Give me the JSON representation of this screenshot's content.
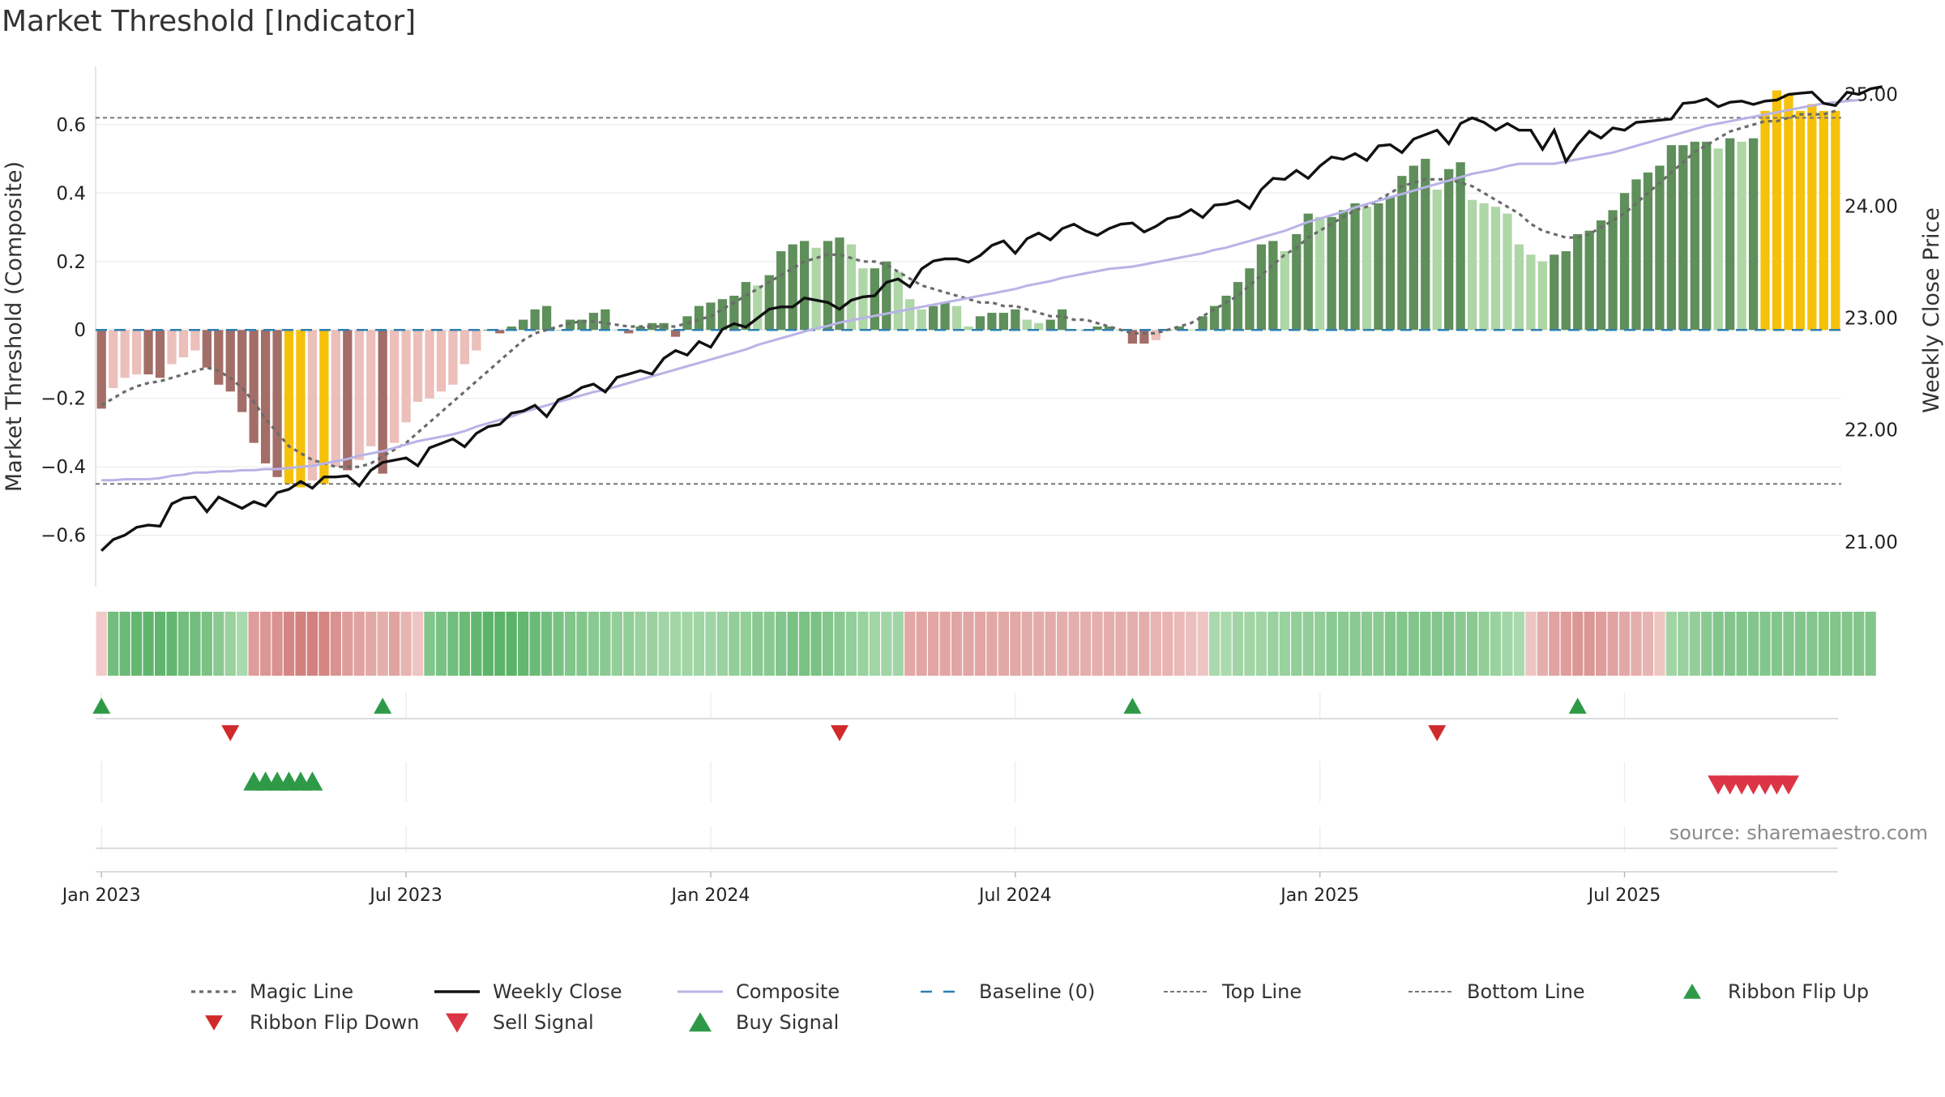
{
  "title": "Market Threshold [Indicator]",
  "source": "source: sharemaestro.com",
  "colors": {
    "magic_line": "#6b6b6b",
    "weekly_close": "#111111",
    "composite": "#b9b3e6",
    "baseline": "#2e7fb0",
    "ref_line": "#777777",
    "ribbon_flip_up": "#2e9a48",
    "ribbon_flip_down": "#d02a2a",
    "sell_signal": "#dc3545",
    "buy_signal": "#2e9a48",
    "extreme_bar": "#f5c10a"
  },
  "chart_data": {
    "type": "bar",
    "title": "Market Threshold [Indicator]",
    "ylabel": "Market Threshold (Composite)",
    "y2label": "Weekly Close Price",
    "ylim": [
      -0.75,
      0.77
    ],
    "y2lim": [
      20.6,
      25.25
    ],
    "yticks": [
      {
        "value": 0.6,
        "label": "0.6"
      },
      {
        "value": 0.4,
        "label": "0.4"
      },
      {
        "value": 0.2,
        "label": "0.2"
      },
      {
        "value": 0,
        "label": "0"
      },
      {
        "value": -0.2,
        "label": "−0.2"
      },
      {
        "value": -0.4,
        "label": "−0.4"
      },
      {
        "value": -0.6,
        "label": "−0.6"
      }
    ],
    "y2ticks": [
      {
        "value": 25.0,
        "label": "25.00"
      },
      {
        "value": 24.0,
        "label": "24.00"
      },
      {
        "value": 23.0,
        "label": "23.00"
      },
      {
        "value": 22.0,
        "label": "22.00"
      },
      {
        "value": 21.0,
        "label": "21.00"
      }
    ],
    "xticks": [
      {
        "week": 1,
        "label": "Jan 2023"
      },
      {
        "week": 27,
        "label": "Jul 2023"
      },
      {
        "week": 53,
        "label": "Jan 2024"
      },
      {
        "week": 79,
        "label": "Jul 2024"
      },
      {
        "week": 105,
        "label": "Jan 2025"
      },
      {
        "week": 131,
        "label": "Jul 2025"
      }
    ],
    "top_line": 0.62,
    "bottom_line": -0.45,
    "composite_bars": [
      -0.23,
      -0.17,
      -0.14,
      -0.13,
      -0.13,
      -0.14,
      -0.1,
      -0.08,
      -0.06,
      -0.11,
      -0.16,
      -0.18,
      -0.24,
      -0.33,
      -0.39,
      -0.43,
      -0.45,
      -0.46,
      -0.44,
      -0.45,
      -0.4,
      -0.41,
      -0.38,
      -0.34,
      -0.42,
      -0.33,
      -0.27,
      -0.21,
      -0.2,
      -0.18,
      -0.16,
      -0.1,
      -0.06,
      0,
      -0.01,
      0.01,
      0.03,
      0.06,
      0.07,
      0,
      0.03,
      0.03,
      0.05,
      0.06,
      0,
      -0.01,
      0.01,
      0.02,
      0.02,
      -0.02,
      0.04,
      0.07,
      0.08,
      0.09,
      0.1,
      0.14,
      0.13,
      0.16,
      0.23,
      0.25,
      0.26,
      0.24,
      0.26,
      0.27,
      0.25,
      0.18,
      0.18,
      0.2,
      0.17,
      0.09,
      0.06,
      0.07,
      0.08,
      0.07,
      0.01,
      0.04,
      0.05,
      0.05,
      0.06,
      0.03,
      0.02,
      0.03,
      0.06,
      0,
      0,
      0.01,
      0.01,
      0,
      -0.04,
      -0.04,
      -0.03,
      0,
      0.01,
      0,
      0.04,
      0.07,
      0.1,
      0.14,
      0.18,
      0.25,
      0.26,
      0.23,
      0.28,
      0.34,
      0.33,
      0.33,
      0.35,
      0.37,
      0.36,
      0.37,
      0.39,
      0.45,
      0.48,
      0.5,
      0.41,
      0.47,
      0.49,
      0.38,
      0.37,
      0.36,
      0.34,
      0.25,
      0.22,
      0.2,
      0.22,
      0.23,
      0.28,
      0.29,
      0.32,
      0.35,
      0.4,
      0.44,
      0.46,
      0.48,
      0.54,
      0.54,
      0.55,
      0.55,
      0.53,
      0.56,
      0.55,
      0.56,
      0.64,
      0.7,
      0.69,
      0.64,
      0.66,
      0.64,
      0.64
    ],
    "weekly_close": [
      20.92,
      21.02,
      21.06,
      21.13,
      21.15,
      21.14,
      21.34,
      21.39,
      21.4,
      21.27,
      21.4,
      21.35,
      21.3,
      21.36,
      21.32,
      21.44,
      21.47,
      21.54,
      21.48,
      21.58,
      21.58,
      21.59,
      21.5,
      21.64,
      21.71,
      21.73,
      21.75,
      21.68,
      21.84,
      21.88,
      21.92,
      21.85,
      21.97,
      22.03,
      22.05,
      22.15,
      22.17,
      22.22,
      22.12,
      22.27,
      22.31,
      22.38,
      22.41,
      22.34,
      22.47,
      22.5,
      22.53,
      22.5,
      22.64,
      22.71,
      22.67,
      22.79,
      22.74,
      22.9,
      22.95,
      22.92,
      23.0,
      23.08,
      23.1,
      23.1,
      23.18,
      23.16,
      23.14,
      23.08,
      23.16,
      23.19,
      23.2,
      23.32,
      23.35,
      23.28,
      23.44,
      23.51,
      23.53,
      23.53,
      23.5,
      23.56,
      23.65,
      23.69,
      23.58,
      23.71,
      23.76,
      23.7,
      23.8,
      23.84,
      23.78,
      23.74,
      23.8,
      23.84,
      23.85,
      23.77,
      23.82,
      23.89,
      23.91,
      23.97,
      23.9,
      24.01,
      24.02,
      24.05,
      23.98,
      24.15,
      24.25,
      24.24,
      24.32,
      24.25,
      24.36,
      24.44,
      24.42,
      24.47,
      24.41,
      24.54,
      24.55,
      24.48,
      24.6,
      24.64,
      24.68,
      24.56,
      24.74,
      24.79,
      24.75,
      24.68,
      24.74,
      24.68,
      24.68,
      24.51,
      24.68,
      24.4,
      24.55,
      24.67,
      24.61,
      24.7,
      24.68,
      24.75,
      24.76,
      24.77,
      24.78,
      24.92,
      24.93,
      24.96,
      24.89,
      24.93,
      24.94,
      24.91,
      24.94,
      24.95,
      25.0,
      25.01,
      25.02,
      24.92,
      24.9,
      25.02,
      25.0,
      25.05,
      25.07
    ],
    "composite_line": [
      21.55,
      21.55,
      21.56,
      21.56,
      21.56,
      21.57,
      21.59,
      21.6,
      21.62,
      21.62,
      21.63,
      21.63,
      21.64,
      21.64,
      21.65,
      21.65,
      21.66,
      21.67,
      21.68,
      21.7,
      21.72,
      21.74,
      21.77,
      21.79,
      21.81,
      21.84,
      21.87,
      21.9,
      21.92,
      21.94,
      21.96,
      21.99,
      22.03,
      22.06,
      22.09,
      22.12,
      22.16,
      22.19,
      22.22,
      22.25,
      22.28,
      22.31,
      22.34,
      22.36,
      22.39,
      22.42,
      22.45,
      22.48,
      22.51,
      22.54,
      22.57,
      22.6,
      22.63,
      22.66,
      22.69,
      22.72,
      22.76,
      22.79,
      22.82,
      22.85,
      22.88,
      22.91,
      22.93,
      22.96,
      22.98,
      23.0,
      23.02,
      23.04,
      23.06,
      23.08,
      23.1,
      23.12,
      23.14,
      23.16,
      23.18,
      23.2,
      23.22,
      23.24,
      23.26,
      23.29,
      23.31,
      23.33,
      23.36,
      23.38,
      23.4,
      23.42,
      23.44,
      23.45,
      23.46,
      23.48,
      23.5,
      23.52,
      23.54,
      23.56,
      23.58,
      23.61,
      23.63,
      23.66,
      23.69,
      23.72,
      23.75,
      23.78,
      23.82,
      23.86,
      23.89,
      23.92,
      23.95,
      23.99,
      24.02,
      24.05,
      24.08,
      24.11,
      24.14,
      24.17,
      24.2,
      24.23,
      24.26,
      24.29,
      24.31,
      24.33,
      24.36,
      24.38,
      24.38,
      24.38,
      24.38,
      24.4,
      24.42,
      24.44,
      24.46,
      24.48,
      24.51,
      24.54,
      24.57,
      24.6,
      24.63,
      24.66,
      24.69,
      24.72,
      24.74,
      24.76,
      24.78,
      24.8,
      24.82,
      24.84,
      24.86,
      24.88,
      24.9,
      24.92,
      24.93,
      24.94,
      24.95
    ],
    "magic_line": [
      -0.22,
      -0.2,
      -0.18,
      -0.165,
      -0.155,
      -0.15,
      -0.14,
      -0.13,
      -0.12,
      -0.11,
      -0.12,
      -0.14,
      -0.17,
      -0.21,
      -0.26,
      -0.3,
      -0.34,
      -0.36,
      -0.38,
      -0.39,
      -0.4,
      -0.4,
      -0.4,
      -0.39,
      -0.37,
      -0.35,
      -0.33,
      -0.3,
      -0.27,
      -0.24,
      -0.21,
      -0.18,
      -0.15,
      -0.12,
      -0.09,
      -0.06,
      -0.03,
      -0.01,
      0,
      0.01,
      0.02,
      0.025,
      0.025,
      0.02,
      0.015,
      0.01,
      0.01,
      0.01,
      0.01,
      0.01,
      0.02,
      0.03,
      0.04,
      0.06,
      0.08,
      0.1,
      0.12,
      0.14,
      0.16,
      0.18,
      0.2,
      0.21,
      0.22,
      0.22,
      0.21,
      0.2,
      0.2,
      0.19,
      0.17,
      0.15,
      0.13,
      0.12,
      0.11,
      0.1,
      0.09,
      0.08,
      0.08,
      0.07,
      0.07,
      0.06,
      0.05,
      0.04,
      0.04,
      0.03,
      0.03,
      0.02,
      0.01,
      0,
      -0.01,
      -0.01,
      -0.01,
      0,
      0.01,
      0.02,
      0.04,
      0.06,
      0.08,
      0.1,
      0.13,
      0.16,
      0.19,
      0.22,
      0.24,
      0.27,
      0.29,
      0.31,
      0.33,
      0.35,
      0.36,
      0.38,
      0.4,
      0.42,
      0.43,
      0.44,
      0.44,
      0.44,
      0.43,
      0.42,
      0.4,
      0.38,
      0.36,
      0.34,
      0.31,
      0.29,
      0.28,
      0.27,
      0.27,
      0.28,
      0.3,
      0.32,
      0.34,
      0.37,
      0.4,
      0.43,
      0.46,
      0.49,
      0.52,
      0.54,
      0.56,
      0.58,
      0.59,
      0.6,
      0.61,
      0.61,
      0.62,
      0.63,
      0.63,
      0.63,
      0.64
    ],
    "ribbon_values": [
      -0.1,
      0.6,
      0.65,
      0.7,
      0.72,
      0.72,
      0.7,
      0.6,
      0.6,
      0.55,
      0.45,
      0.35,
      0.25,
      -0.5,
      -0.55,
      -0.6,
      -0.7,
      -0.75,
      -0.75,
      -0.7,
      -0.6,
      -0.5,
      -0.45,
      -0.4,
      -0.35,
      -0.45,
      -0.3,
      -0.15,
      0.5,
      0.55,
      0.6,
      0.65,
      0.7,
      0.75,
      0.75,
      0.75,
      0.7,
      0.65,
      0.6,
      0.55,
      0.5,
      0.5,
      0.45,
      0.45,
      0.4,
      0.4,
      0.35,
      0.35,
      0.3,
      0.3,
      0.3,
      0.3,
      0.3,
      0.35,
      0.4,
      0.4,
      0.45,
      0.45,
      0.5,
      0.55,
      0.55,
      0.55,
      0.5,
      0.45,
      0.4,
      0.35,
      0.3,
      0.3,
      0.3,
      -0.4,
      -0.42,
      -0.42,
      -0.42,
      -0.42,
      -0.42,
      -0.42,
      -0.4,
      -0.4,
      -0.4,
      -0.38,
      -0.38,
      -0.38,
      -0.35,
      -0.35,
      -0.35,
      -0.35,
      -0.35,
      -0.35,
      -0.35,
      -0.35,
      -0.3,
      -0.3,
      -0.25,
      -0.2,
      -0.15,
      0.25,
      0.25,
      0.3,
      0.3,
      0.3,
      0.35,
      0.35,
      0.4,
      0.4,
      0.4,
      0.45,
      0.45,
      0.45,
      0.45,
      0.45,
      0.5,
      0.5,
      0.5,
      0.5,
      0.5,
      0.5,
      0.45,
      0.45,
      0.4,
      0.35,
      0.3,
      0.25,
      -0.15,
      -0.35,
      -0.45,
      -0.5,
      -0.55,
      -0.55,
      -0.5,
      -0.45,
      -0.4,
      -0.35,
      -0.3,
      -0.15,
      0.3,
      0.35,
      0.4,
      0.45,
      0.5,
      0.5,
      0.5,
      0.5,
      0.5,
      0.5,
      0.5,
      0.5,
      0.5,
      0.5,
      0.5,
      0.5,
      0.5,
      0.5
    ],
    "ribbon_flip_up_weeks": [
      1,
      25,
      89,
      127
    ],
    "ribbon_flip_down_weeks": [
      12,
      64,
      115
    ],
    "buy_signal_weeks": [
      14,
      15,
      16,
      17,
      18,
      19
    ],
    "sell_signal_weeks": [
      139,
      140,
      141,
      142,
      143,
      144,
      145
    ],
    "legend": [
      {
        "key": "magic",
        "label": "Magic Line"
      },
      {
        "key": "close",
        "label": "Weekly Close"
      },
      {
        "key": "composite",
        "label": "Composite"
      },
      {
        "key": "baseline",
        "label": "Baseline (0)"
      },
      {
        "key": "top",
        "label": "Top Line"
      },
      {
        "key": "bottom",
        "label": "Bottom Line"
      },
      {
        "key": "flipup",
        "label": "Ribbon Flip Up"
      },
      {
        "key": "flipdown",
        "label": "Ribbon Flip Down"
      },
      {
        "key": "sell",
        "label": "Sell Signal"
      },
      {
        "key": "buy",
        "label": "Buy Signal"
      }
    ],
    "legend_position": "bottom"
  }
}
